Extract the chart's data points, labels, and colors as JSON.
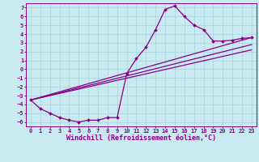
{
  "background_color": "#c8eaf0",
  "grid_color": "#a8d4dc",
  "line_color": "#880088",
  "marker_color": "#880088",
  "xlabel": "Windchill (Refroidissement éolien,°C)",
  "xlim": [
    -0.5,
    23.5
  ],
  "ylim": [
    -6.5,
    7.5
  ],
  "xticks": [
    0,
    1,
    2,
    3,
    4,
    5,
    6,
    7,
    8,
    9,
    10,
    11,
    12,
    13,
    14,
    15,
    16,
    17,
    18,
    19,
    20,
    21,
    22,
    23
  ],
  "yticks": [
    7,
    6,
    5,
    4,
    3,
    2,
    1,
    0,
    -1,
    -2,
    -3,
    -4,
    -5,
    -6
  ],
  "series1_x": [
    0,
    1,
    2,
    3,
    4,
    5,
    6,
    7,
    8,
    9,
    10,
    11,
    12,
    13,
    14,
    15,
    16,
    17,
    18,
    19,
    20,
    21,
    22,
    23
  ],
  "series1_y": [
    -3.5,
    -4.5,
    -5.0,
    -5.5,
    -5.8,
    -6.0,
    -5.8,
    -5.8,
    -5.5,
    -5.5,
    -0.5,
    1.2,
    2.5,
    4.5,
    6.8,
    7.2,
    6.0,
    5.0,
    4.5,
    3.2,
    3.2,
    3.3,
    3.5,
    3.6
  ],
  "line1_x": [
    0,
    23
  ],
  "line1_y": [
    -3.5,
    3.6
  ],
  "line2_x": [
    0,
    23
  ],
  "line2_y": [
    -3.5,
    2.8
  ],
  "line3_x": [
    0,
    23
  ],
  "line3_y": [
    -3.5,
    2.2
  ],
  "font_size_xlabel": 6.0,
  "font_size_tick": 5.0,
  "lw": 0.9
}
